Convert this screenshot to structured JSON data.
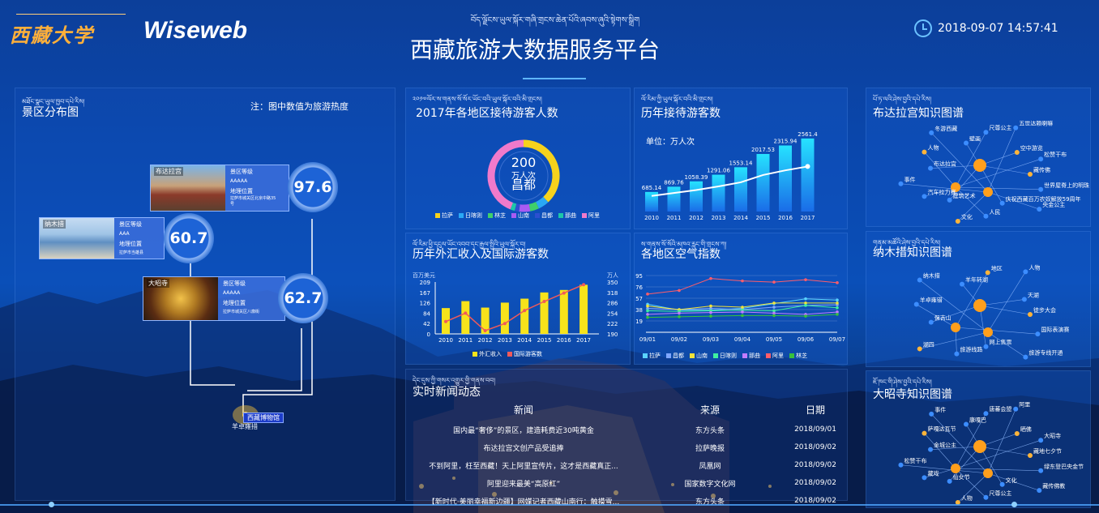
{
  "header": {
    "logo_text": "西藏大学",
    "brand": "Wiseweb",
    "tibetan_title": "བོད་ལྗོངས་ཡུལ་སྐོར་གཞི་གྲངས་ཆེན་པོའི་ཞབས་ཞུའི་སྟེགས་སྒྲིག",
    "title": "西藏旅游大数据服务平台",
    "datetime": "2018-09-07 14:57:41"
  },
  "scenic": {
    "tibetan": "མཐོང་སྣང་ཡུལ་ཁྱབ་དཔེ་རིས།",
    "title": "景区分布图",
    "note": "注：图中数值为旅游热度",
    "cards": [
      {
        "name": "布达拉宫",
        "level_label": "景区等级",
        "level": "AAAAA",
        "addr_label": "地理位置",
        "addr": "拉萨市城关区北京中路35号",
        "heat": "97.6"
      },
      {
        "name": "纳木措",
        "level_label": "景区等级",
        "level": "AAA",
        "addr_label": "地理位置",
        "addr": "拉萨市当雄县",
        "heat": "60.7"
      },
      {
        "name": "大昭寺",
        "level_label": "景区等级",
        "level": "AAAAA",
        "addr_label": "地理位置",
        "addr": "拉萨市城关区八廓街",
        "heat": "62.7"
      }
    ],
    "map_labels": [
      "西藏博物馆",
      "羊卓雍措"
    ]
  },
  "visitors": {
    "tibetan": "༢༠༡༧ལོར་ས་གནས་སོ་སོར་ཡོང་བའི་ཡུལ་སྐོར་བའི་མི་གྲངས།",
    "title": "2017年各地区接待游客人数",
    "center_value": "200",
    "center_unit": "万人次",
    "center_name": "昌都",
    "legend": [
      "拉萨",
      "日喀则",
      "林芝",
      "山南",
      "昌都",
      "那曲",
      "阿里"
    ],
    "colors": [
      "#f6d21c",
      "#2aa8f5",
      "#3fd06a",
      "#a85bf2",
      "#2c4fd0",
      "#1cc6a8",
      "#f07acb"
    ]
  },
  "yearly": {
    "tibetan": "ལོ་རིམ་ཀྱི་ཡུལ་སྐོར་བའི་མི་གྲངས།",
    "title": "历年接待游客数",
    "unit": "单位：万人次",
    "chart_data": {
      "type": "bar",
      "categories": [
        "2010",
        "2011",
        "2012",
        "2013",
        "2014",
        "2015",
        "2016",
        "2017"
      ],
      "values": [
        685.14,
        869.76,
        1058.39,
        1291.06,
        1553.14,
        2017.53,
        2315.94,
        2561.4
      ],
      "value_labels": [
        "685.14",
        "869.76",
        "1058.39",
        "1291.06",
        "1553.14",
        "2017.53",
        "2315.94",
        "2561.4"
      ],
      "ylim": [
        0,
        2700
      ]
    }
  },
  "forex": {
    "tibetan": "ལོ་རིམ་ཕྱི་དངུལ་ཡོང་འབབ་དང་རྒྱལ་སྤྱིའི་ཡུལ་སྐོར་བ།",
    "title": "历年外汇收入及国际游客数",
    "left_unit": "百万美元",
    "right_unit": "万人",
    "left_ticks": [
      "0",
      "42",
      "84",
      "126",
      "167",
      "209"
    ],
    "right_ticks": [
      "190",
      "222",
      "254",
      "286",
      "318",
      "350"
    ],
    "legend": [
      "外汇收入",
      "国际游客数"
    ],
    "chart_data": {
      "type": "bar",
      "categories": [
        "2010",
        "2011",
        "2012",
        "2013",
        "2014",
        "2015",
        "2016",
        "2017"
      ],
      "series": [
        {
          "name": "外汇收入",
          "values": [
            104,
            132,
            106,
            126,
            142,
            167,
            177,
            198
          ]
        },
        {
          "name": "国际游客数",
          "values": [
            228,
            254,
            200,
            222,
            262,
            290,
            316,
            342
          ]
        }
      ]
    }
  },
  "air": {
    "tibetan": "ས་གནས་སོ་སོའི་མཁའ་རླུང་གི་གྲངས་ཀ།",
    "title": "各地区空气指数",
    "y_ticks": [
      "19",
      "38",
      "57",
      "76",
      "95"
    ],
    "legend": [
      "拉萨",
      "昌都",
      "山南",
      "日喀则",
      "那曲",
      "阿里",
      "林芝"
    ],
    "colors": [
      "#5ad3ff",
      "#7fa7ff",
      "#f2e33a",
      "#3ff0a0",
      "#c27cff",
      "#ff5d6a",
      "#37c13d"
    ],
    "chart_data": {
      "type": "line",
      "categories": [
        "09/01",
        "09/02",
        "09/03",
        "09/04",
        "09/05",
        "09/06",
        "09/07"
      ],
      "series": [
        {
          "name": "拉萨",
          "values": [
            47,
            37,
            37,
            40,
            48,
            56,
            54
          ]
        },
        {
          "name": "昌都",
          "values": [
            40,
            38,
            40,
            38,
            42,
            45,
            46
          ]
        },
        {
          "name": "山南",
          "values": [
            44,
            38,
            44,
            42,
            49,
            49,
            49
          ]
        },
        {
          "name": "日喀则",
          "values": [
            36,
            35,
            36,
            37,
            36,
            45,
            41
          ]
        },
        {
          "name": "那曲",
          "values": [
            30,
            32,
            33,
            34,
            32,
            30,
            34
          ]
        },
        {
          "name": "阿里",
          "values": [
            64,
            70,
            90,
            86,
            84,
            88,
            83
          ]
        },
        {
          "name": "林芝",
          "values": [
            25,
            26,
            27,
            28,
            28,
            27,
            30
          ]
        }
      ]
    }
  },
  "news": {
    "tibetan": "དེང་དུས་ཀྱི་གསར་འགྱུར་གྱི་གནས་བབ།",
    "title": "实时新闻动态",
    "headers": [
      "新闻",
      "来源",
      "日期"
    ],
    "rows": [
      [
        "国内最“奢侈”的景区，建造耗费近30吨黄金",
        "东方头条",
        "2018/09/01"
      ],
      [
        "布达拉宫文创产品受追捧",
        "拉萨晚报",
        "2018/09/02"
      ],
      [
        "不到阿里，枉至西藏！天上阿里宣传片，这才是西藏真正...",
        "凤凰网",
        "2018/09/02"
      ],
      [
        "阿里迎来最美“高原红”",
        "国家数字文化网",
        "2018/09/02"
      ],
      [
        "【新时代·美丽幸福新边疆】网媒记者西藏山南行：触摸雪...",
        "东方头条",
        "2018/09/02"
      ]
    ]
  },
  "graphs": [
    {
      "tibetan": "པོ་ཏ་ལའི་ཤེས་བྱའི་དཔེ་རིས།",
      "title": "布达拉宫知识图谱",
      "labels": [
        "藏传佛",
        "世界屋脊上的明珠",
        "央金公主",
        "庆祝西藏百万农奴解放59周年",
        "人民",
        "文化",
        "建筑艺术",
        "汽车拉力赛",
        "事件",
        "布达拉宫",
        "人物",
        "冬游西藏",
        "壁画",
        "尺尊公主",
        "五世达赖喇嘛",
        "空中游览",
        "松赞干布"
      ]
    },
    {
      "tibetan": "གནམ་མཚོའི་ཤེས་བྱའི་དཔེ་རིས།",
      "title": "纳木措知识图谱",
      "labels": [
        "徒步大会",
        "国际表演赛",
        "旅游专线开通",
        "网上售票",
        "旅游线路",
        "湖四",
        "保吉山",
        "羊卓雍错",
        "纳木措",
        "羊年转湖",
        "地区",
        "人物",
        "天湖"
      ]
    },
    {
      "tibetan": "ཇོ་ཁང་གི་ཤེས་བྱའི་དཔེ་རིས།",
      "title": "大昭寺知识图谱",
      "labels": [
        "藏地七夕节",
        "绿东登巴央金节",
        "藏传佛教",
        "文化",
        "尺尊公主",
        "人物",
        "仙女节",
        "藏戏",
        "松赞干布",
        "金城公主",
        "萨嘎达瓦节",
        "事件",
        "康嘎巴",
        "唐蕃会盟",
        "阿里",
        "晒佛",
        "大昭寺"
      ]
    }
  ]
}
